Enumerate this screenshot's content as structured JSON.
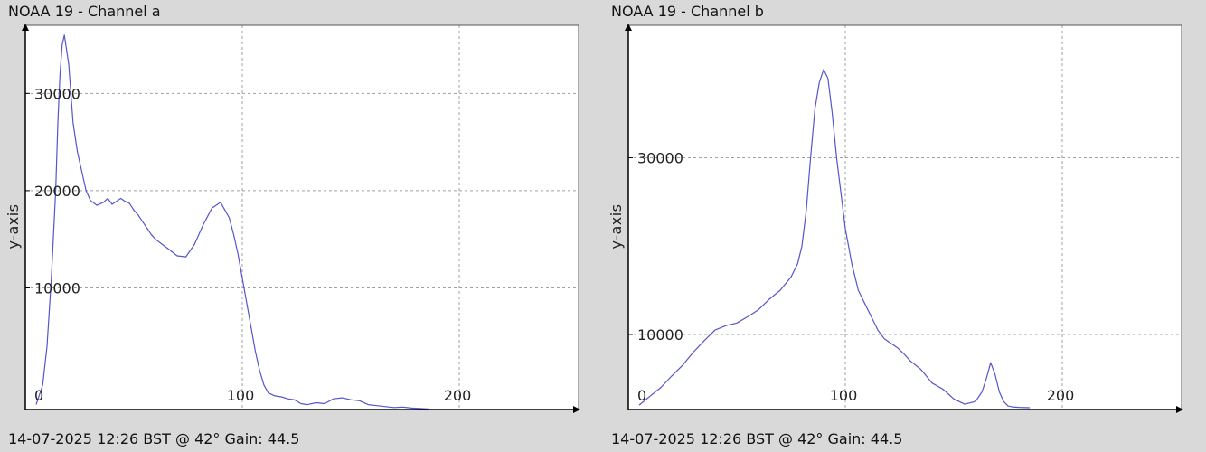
{
  "charts": {
    "a": {
      "title": "NOAA 19 - Channel a",
      "footer": "14-07-2025 12:26 BST @ 42° Gain: 44.5"
    },
    "b": {
      "title": "NOAA 19 - Channel b",
      "footer": "14-07-2025 12:26 BST @ 42° Gain: 44.5"
    }
  },
  "colors": {
    "line": "#5555cc",
    "grid": "#a0a0a0",
    "axis": "#000000",
    "plot_bg": "#ffffff",
    "page_bg": "#d9d9d9"
  },
  "chart_data": [
    {
      "type": "line",
      "title": "NOAA 19 - Channel a",
      "xlabel": "",
      "ylabel": "y-axis",
      "xlim": [
        0,
        255
      ],
      "ylim": [
        -2500,
        37000
      ],
      "xticks": [
        0,
        100,
        200
      ],
      "yticks": [
        10000,
        20000,
        30000
      ],
      "grid": true,
      "x": [
        5,
        8,
        10,
        12,
        14,
        15,
        16,
        17,
        18,
        20,
        22,
        24,
        26,
        28,
        30,
        33,
        36,
        38,
        40,
        42,
        44,
        46,
        48,
        50,
        52,
        55,
        58,
        60,
        63,
        66,
        70,
        74,
        78,
        82,
        86,
        90,
        94,
        96,
        98,
        100,
        102,
        104,
        106,
        108,
        110,
        112,
        115,
        118,
        121,
        124,
        127,
        130,
        134,
        138,
        142,
        146,
        150,
        154,
        158,
        162,
        166,
        170,
        174,
        178,
        182,
        186
      ],
      "y": [
        -2000,
        0,
        4000,
        11000,
        20000,
        27000,
        32000,
        35000,
        36000,
        33000,
        27000,
        24000,
        22000,
        20000,
        19000,
        18500,
        18800,
        19200,
        18600,
        18900,
        19200,
        18900,
        18700,
        18000,
        17500,
        16500,
        15500,
        15000,
        14500,
        14000,
        13300,
        13200,
        14500,
        16500,
        18200,
        18800,
        17200,
        15500,
        13500,
        11000,
        8500,
        6000,
        3500,
        1500,
        0,
        -800,
        -1100,
        -1200,
        -1400,
        -1500,
        -1900,
        -2000,
        -1800,
        -1900,
        -1400,
        -1300,
        -1500,
        -1600,
        -2000,
        -2100,
        -2200,
        -2300,
        -2250,
        -2350,
        -2400,
        -2450
      ]
    },
    {
      "type": "line",
      "title": "NOAA 19 - Channel b",
      "xlabel": "",
      "ylabel": "y-axis",
      "xlim": [
        0,
        255
      ],
      "ylim": [
        1500,
        45000
      ],
      "xticks": [
        0,
        100,
        200
      ],
      "yticks": [
        10000,
        30000
      ],
      "grid": true,
      "x": [
        5,
        10,
        15,
        20,
        25,
        30,
        35,
        40,
        45,
        50,
        55,
        60,
        65,
        70,
        75,
        78,
        80,
        82,
        84,
        86,
        88,
        90,
        92,
        94,
        96,
        98,
        100,
        103,
        106,
        109,
        112,
        115,
        118,
        121,
        124,
        127,
        130,
        135,
        140,
        145,
        150,
        155,
        160,
        163,
        165,
        167,
        169,
        171,
        173,
        175,
        177,
        180,
        185
      ],
      "y": [
        2000,
        3000,
        4000,
        5300,
        6500,
        8000,
        9300,
        10500,
        11000,
        11300,
        12000,
        12800,
        14000,
        15000,
        16500,
        18000,
        20000,
        24000,
        30000,
        35500,
        38500,
        40000,
        39000,
        35000,
        30000,
        26000,
        22000,
        18000,
        15000,
        13500,
        12000,
        10500,
        9500,
        9000,
        8500,
        7800,
        7000,
        6000,
        4500,
        3800,
        2700,
        2100,
        2400,
        3500,
        5000,
        6800,
        5500,
        3500,
        2400,
        1900,
        1800,
        1750,
        1700
      ]
    }
  ]
}
